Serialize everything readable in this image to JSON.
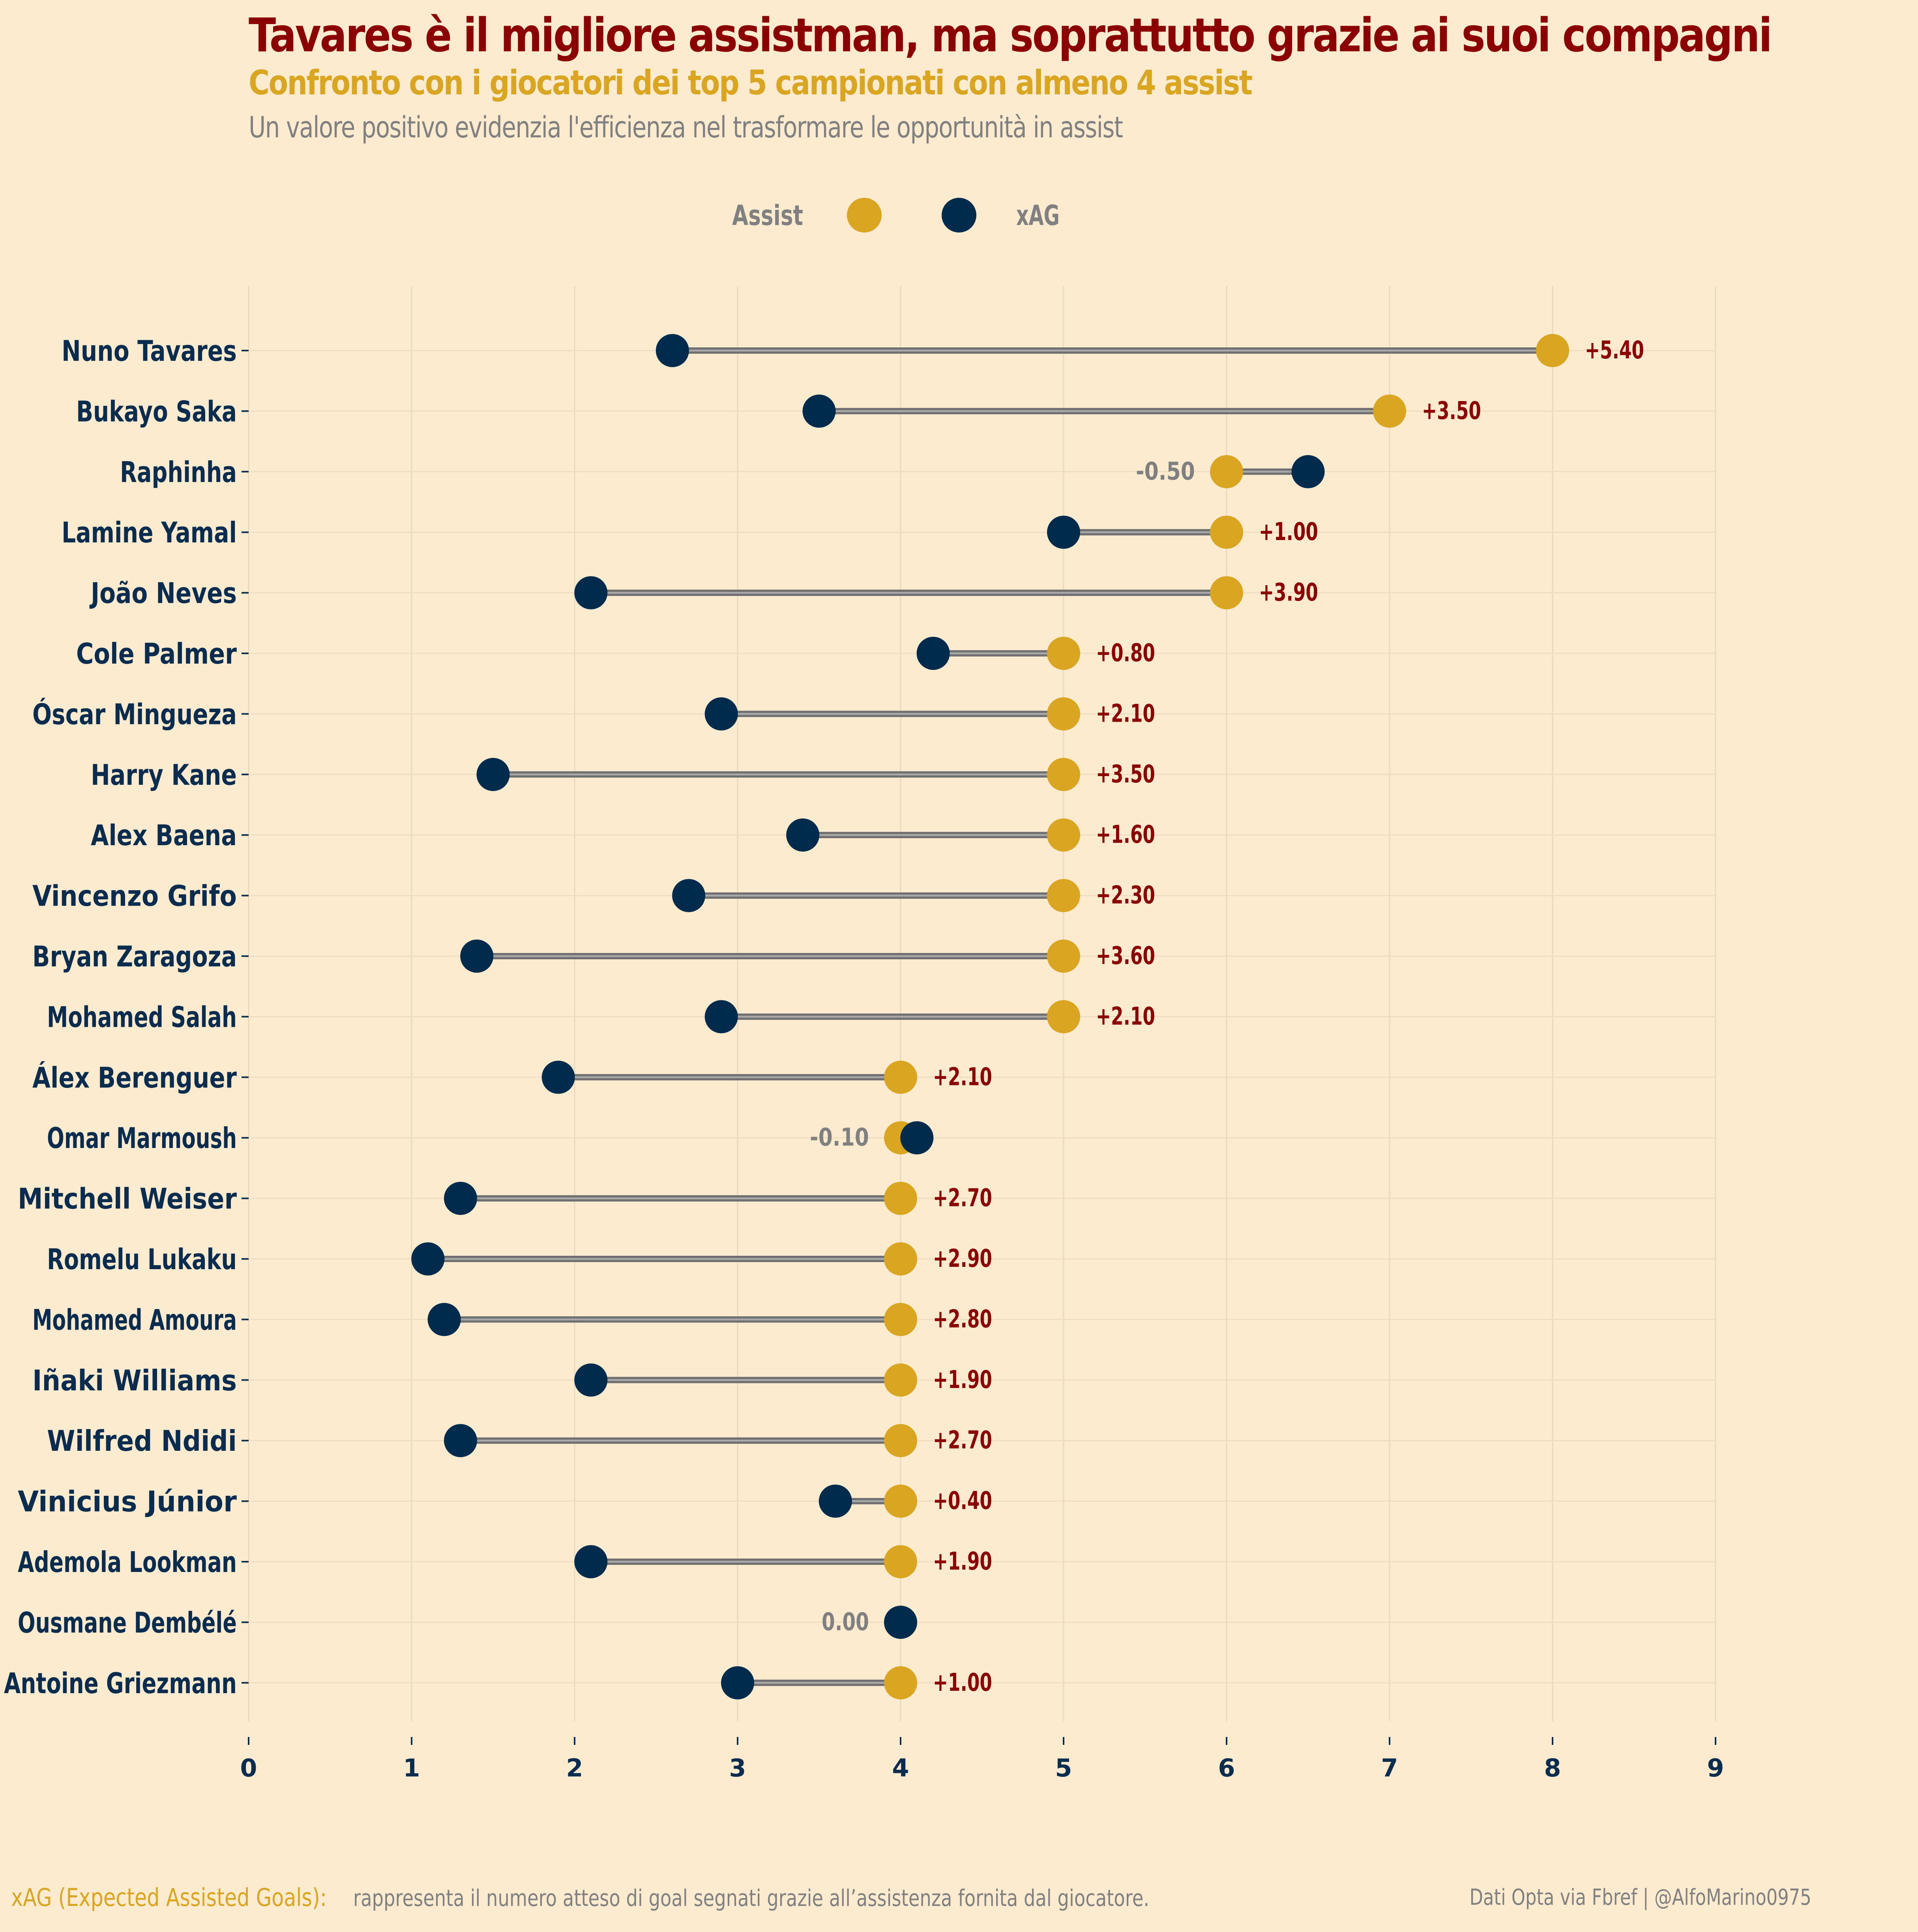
{
  "header": {
    "title": "Tavares è il migliore assistman, ma soprattutto grazie ai suoi compagni",
    "subtitle": "Confronto con i giocatori dei top 5 campionati con almeno 4 assist",
    "description": "Un valore positivo evidenzia l'efficienza nel trasformare le opportunità in assist"
  },
  "colors": {
    "assist": "#daa520",
    "xag": "#002b4d",
    "connector": "#808080",
    "positive_label": "#8b0000",
    "negative_label": "#808080",
    "background": "#fdebd0"
  },
  "chart_data": {
    "type": "dumbbell",
    "legend": {
      "placement": "top-center",
      "entries": [
        "Assist",
        "xAG"
      ]
    },
    "xlim": [
      0,
      9
    ],
    "xticks": [
      "0",
      "1",
      "2",
      "3",
      "4",
      "5",
      "6",
      "7",
      "8",
      "9"
    ],
    "grid": true,
    "players": [
      {
        "name": "Nuno Tavares",
        "assist": 8,
        "xag": 2.6,
        "diff": "+5.40"
      },
      {
        "name": "Bukayo Saka",
        "assist": 7,
        "xag": 3.5,
        "diff": "+3.50"
      },
      {
        "name": "Raphinha",
        "assist": 6,
        "xag": 6.5,
        "diff": "-0.50"
      },
      {
        "name": "Lamine Yamal",
        "assist": 6,
        "xag": 5.0,
        "diff": "+1.00"
      },
      {
        "name": "João Neves",
        "assist": 6,
        "xag": 2.1,
        "diff": "+3.90"
      },
      {
        "name": "Cole Palmer",
        "assist": 5,
        "xag": 4.2,
        "diff": "+0.80"
      },
      {
        "name": "Óscar Mingueza",
        "assist": 5,
        "xag": 2.9,
        "diff": "+2.10"
      },
      {
        "name": "Harry Kane",
        "assist": 5,
        "xag": 1.5,
        "diff": "+3.50"
      },
      {
        "name": "Alex Baena",
        "assist": 5,
        "xag": 3.4,
        "diff": "+1.60"
      },
      {
        "name": "Vincenzo Grifo",
        "assist": 5,
        "xag": 2.7,
        "diff": "+2.30"
      },
      {
        "name": "Bryan Zaragoza",
        "assist": 5,
        "xag": 1.4,
        "diff": "+3.60"
      },
      {
        "name": "Mohamed Salah",
        "assist": 5,
        "xag": 2.9,
        "diff": "+2.10"
      },
      {
        "name": "Álex Berenguer",
        "assist": 4,
        "xag": 1.9,
        "diff": "+2.10"
      },
      {
        "name": "Omar Marmoush",
        "assist": 4,
        "xag": 4.1,
        "diff": "-0.10"
      },
      {
        "name": "Mitchell Weiser",
        "assist": 4,
        "xag": 1.3,
        "diff": "+2.70"
      },
      {
        "name": "Romelu Lukaku",
        "assist": 4,
        "xag": 1.1,
        "diff": "+2.90"
      },
      {
        "name": "Mohamed Amoura",
        "assist": 4,
        "xag": 1.2,
        "diff": "+2.80"
      },
      {
        "name": "Iñaki Williams",
        "assist": 4,
        "xag": 2.1,
        "diff": "+1.90"
      },
      {
        "name": "Wilfred Ndidi",
        "assist": 4,
        "xag": 1.3,
        "diff": "+2.70"
      },
      {
        "name": "Vinicius Júnior",
        "assist": 4,
        "xag": 3.6,
        "diff": "+0.40"
      },
      {
        "name": "Ademola Lookman",
        "assist": 4,
        "xag": 2.1,
        "diff": "+1.90"
      },
      {
        "name": "Ousmane Dembélé",
        "assist": 4,
        "xag": 4.0,
        "diff": "0.00"
      },
      {
        "name": "Antoine Griezmann",
        "assist": 4,
        "xag": 3.0,
        "diff": "+1.00"
      }
    ]
  },
  "footer": {
    "key_label": "xAG (Expected Assisted Goals):",
    "key_text": "rappresenta il numero atteso di goal segnati grazie all’assistenza fornita dal giocatore.",
    "source": "Dati Opta via Fbref | @AlfoMarino0975"
  }
}
